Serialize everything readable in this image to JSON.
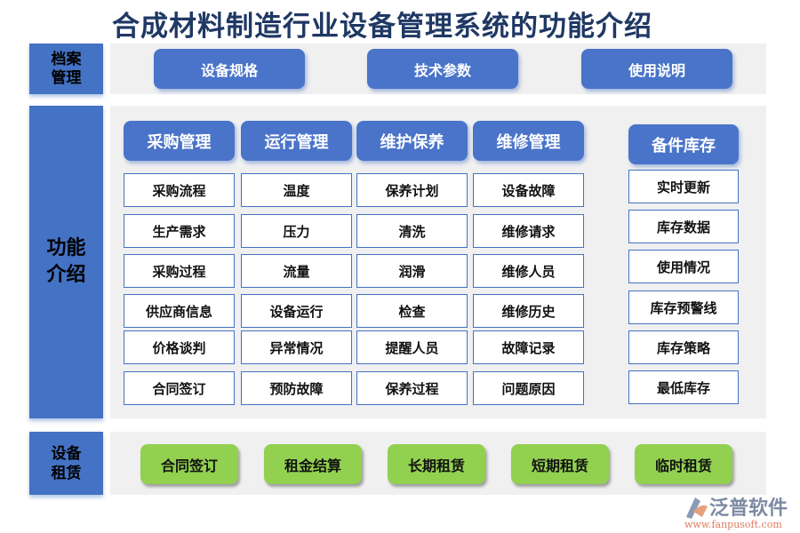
{
  "title": "合成材料制造行业设备管理系统的功能介绍",
  "sections": {
    "archive": {
      "label": "档案管理",
      "buttons": [
        "设备规格",
        "技术参数",
        "使用说明"
      ]
    },
    "features": {
      "label": "功能介绍",
      "columns": [
        {
          "header": "采购管理",
          "items": [
            "采购流程",
            "生产需求",
            "采购过程",
            "供应商信息",
            "价格谈判",
            "合同签订"
          ]
        },
        {
          "header": "运行管理",
          "items": [
            "温度",
            "压力",
            "流量",
            "设备运行",
            "异常情况",
            "预防故障"
          ]
        },
        {
          "header": "维护保养",
          "items": [
            "保养计划",
            "清洗",
            "润滑",
            "检查",
            "提醒人员",
            "保养过程"
          ]
        },
        {
          "header": "维修管理",
          "items": [
            "设备故障",
            "维修请求",
            "维修人员",
            "维修历史",
            "故障记录",
            "问题原因"
          ]
        },
        {
          "header": "备件库存",
          "items": [
            "实时更新",
            "库存数据",
            "使用情况",
            "库存预警线",
            "库存策略",
            "最低库存"
          ]
        }
      ]
    },
    "leasing": {
      "label": "设备租赁",
      "buttons": [
        "合同签订",
        "租金结算",
        "长期租赁",
        "短期租赁",
        "临时租赁"
      ]
    }
  },
  "logo": {
    "name": "泛普软件",
    "url": "www.fanpusoft.com"
  },
  "colors": {
    "blue": "#4472c4",
    "green": "#92d050",
    "panel": "#f0f0f0",
    "title": "#1f3864"
  }
}
